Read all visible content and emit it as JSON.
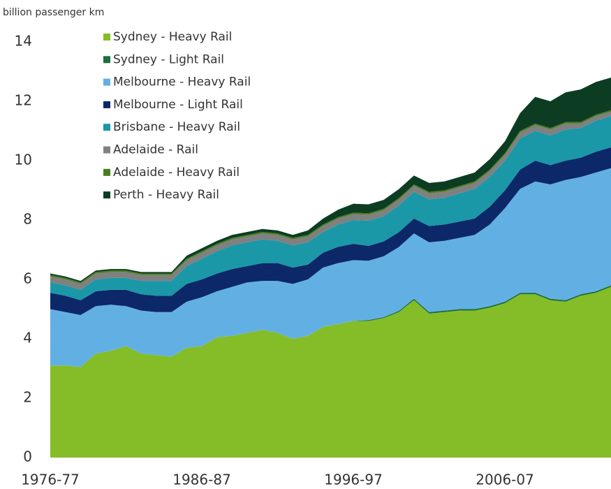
{
  "chart_data": {
    "type": "stacked_area",
    "y_label": "billion passenger km",
    "categories": [
      "1976-77",
      null,
      null,
      null,
      null,
      null,
      null,
      null,
      null,
      null,
      "1986-87",
      null,
      null,
      null,
      null,
      null,
      null,
      null,
      null,
      null,
      "1996-97",
      null,
      null,
      null,
      null,
      null,
      null,
      null,
      null,
      null,
      "2006-07",
      null,
      null,
      null,
      null,
      null,
      null,
      null
    ],
    "ylim": [
      0,
      14
    ],
    "yticks": [
      0,
      2,
      4,
      6,
      8,
      10,
      12,
      14
    ],
    "grid": false,
    "legend": "upper left",
    "series": [
      {
        "name": "Sydney - Heavy Rail",
        "color": "#84bd27",
        "values": [
          3.1,
          3.1,
          3.05,
          3.5,
          3.6,
          3.75,
          3.5,
          3.45,
          3.4,
          3.7,
          3.75,
          4.05,
          4.1,
          4.2,
          4.3,
          4.2,
          4.0,
          4.1,
          4.4,
          4.5,
          4.6,
          4.6,
          4.7,
          4.9,
          5.3,
          4.85,
          4.9,
          4.95,
          4.95,
          5.05,
          5.2,
          5.5,
          5.5,
          5.3,
          5.25,
          5.45,
          5.55,
          5.75
        ]
      },
      {
        "name": "Sydney - Light Rail",
        "color": "#1c6e3d",
        "values": [
          0,
          0,
          0,
          0,
          0,
          0,
          0,
          0,
          0,
          0,
          0,
          0,
          0,
          0,
          0,
          0,
          0,
          0,
          0,
          0,
          0,
          0.03,
          0.03,
          0.04,
          0.05,
          0.05,
          0.05,
          0.05,
          0.05,
          0.05,
          0.05,
          0.05,
          0.05,
          0.05,
          0.05,
          0.05,
          0.05,
          0.05
        ]
      },
      {
        "name": "Melbourne - Heavy Rail",
        "color": "#62b0e3",
        "values": [
          1.9,
          1.8,
          1.75,
          1.6,
          1.55,
          1.35,
          1.45,
          1.45,
          1.5,
          1.55,
          1.65,
          1.55,
          1.65,
          1.7,
          1.65,
          1.75,
          1.85,
          1.9,
          2.0,
          2.05,
          2.05,
          2.0,
          2.05,
          2.15,
          2.2,
          2.35,
          2.35,
          2.4,
          2.5,
          2.75,
          3.15,
          3.5,
          3.75,
          3.85,
          4.05,
          3.95,
          4.0,
          3.95
        ]
      },
      {
        "name": "Melbourne - Light Rail",
        "color": "#0c2868",
        "values": [
          0.55,
          0.55,
          0.5,
          0.5,
          0.5,
          0.55,
          0.55,
          0.55,
          0.55,
          0.6,
          0.6,
          0.6,
          0.6,
          0.55,
          0.6,
          0.6,
          0.55,
          0.5,
          0.5,
          0.55,
          0.55,
          0.5,
          0.5,
          0.5,
          0.5,
          0.55,
          0.55,
          0.55,
          0.55,
          0.6,
          0.6,
          0.65,
          0.7,
          0.65,
          0.65,
          0.65,
          0.7,
          0.7
        ]
      },
      {
        "name": "Brisbane - Heavy Rail",
        "color": "#1a98a8",
        "values": [
          0.35,
          0.35,
          0.35,
          0.4,
          0.4,
          0.4,
          0.45,
          0.5,
          0.5,
          0.6,
          0.7,
          0.75,
          0.8,
          0.8,
          0.8,
          0.75,
          0.75,
          0.75,
          0.7,
          0.75,
          0.8,
          0.85,
          0.85,
          0.9,
          0.9,
          0.9,
          0.9,
          0.95,
          1.0,
          1.0,
          1.0,
          1.05,
          1.0,
          1.0,
          1.05,
          1.0,
          1.05,
          1.05
        ]
      },
      {
        "name": "Adelaide - Rail",
        "color": "#808080",
        "values": [
          0.2,
          0.2,
          0.2,
          0.2,
          0.2,
          0.2,
          0.2,
          0.2,
          0.2,
          0.2,
          0.2,
          0.2,
          0.2,
          0.2,
          0.2,
          0.2,
          0.2,
          0.2,
          0.2,
          0.2,
          0.2,
          0.2,
          0.2,
          0.2,
          0.2,
          0.2,
          0.2,
          0.2,
          0.2,
          0.2,
          0.2,
          0.2,
          0.2,
          0.2,
          0.2,
          0.15,
          0.15,
          0.15
        ]
      },
      {
        "name": "Adelaide - Heavy Rail",
        "color": "#4a7d1f",
        "values": [
          0.05,
          0.05,
          0.05,
          0.05,
          0.05,
          0.05,
          0.05,
          0.05,
          0.05,
          0.05,
          0.05,
          0.05,
          0.05,
          0.05,
          0.05,
          0.05,
          0.05,
          0.05,
          0.05,
          0.05,
          0.05,
          0.05,
          0.05,
          0.05,
          0.05,
          0.05,
          0.05,
          0.05,
          0.05,
          0.05,
          0.05,
          0.05,
          0.05,
          0.05,
          0.05,
          0.05,
          0.05,
          0.05
        ]
      },
      {
        "name": "Perth - Heavy Rail",
        "color": "#0c3d22",
        "values": [
          0.05,
          0.05,
          0.05,
          0.05,
          0.05,
          0.05,
          0.05,
          0.05,
          0.05,
          0.1,
          0.1,
          0.1,
          0.1,
          0.1,
          0.1,
          0.1,
          0.1,
          0.15,
          0.2,
          0.25,
          0.3,
          0.3,
          0.3,
          0.3,
          0.3,
          0.3,
          0.3,
          0.3,
          0.3,
          0.35,
          0.4,
          0.6,
          0.9,
          0.9,
          1.0,
          1.1,
          1.1,
          1.1
        ]
      }
    ]
  }
}
